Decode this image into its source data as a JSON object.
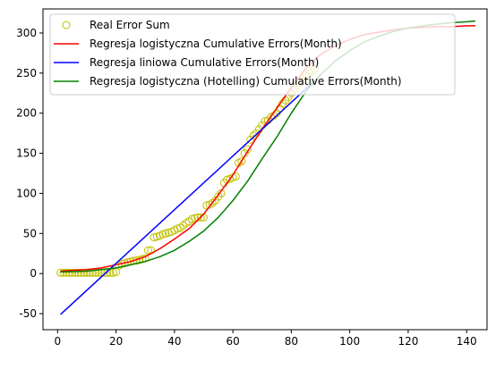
{
  "chart_data": {
    "type": "line",
    "xlim": [
      -5,
      147
    ],
    "ylim": [
      -70,
      330
    ],
    "x_ticks": [
      0,
      20,
      40,
      60,
      80,
      100,
      120,
      140
    ],
    "y_ticks": [
      -50,
      0,
      50,
      100,
      150,
      200,
      250,
      300
    ],
    "grid": false,
    "legend_position": "top-left",
    "legend": [
      "Real Error Sum",
      "Regresja logistyczna Cumulative Errors(Month)",
      "Regresja liniowa Cumulative Errors(Month)",
      "Regresja logistyczna (Hotelling) Cumulative Errors(Month)"
    ],
    "colors": {
      "scatter": "#bfbf00",
      "logistic": "#ff0000",
      "linear": "#0000ff",
      "hotelling": "#008000"
    },
    "scatter_series": {
      "name": "Real Error Sum",
      "x": [
        1,
        2,
        3,
        4,
        5,
        6,
        7,
        8,
        9,
        10,
        11,
        12,
        13,
        14,
        15,
        16,
        17,
        18,
        19,
        20,
        21,
        22,
        23,
        24,
        25,
        26,
        27,
        28,
        29,
        30,
        31,
        32,
        33,
        34,
        35,
        36,
        37,
        38,
        39,
        40,
        41,
        42,
        43,
        44,
        45,
        46,
        47,
        48,
        49,
        50,
        51,
        52,
        53,
        54,
        55,
        56,
        57,
        58,
        59,
        60,
        61,
        62,
        63,
        64,
        65,
        66,
        67,
        68,
        69,
        70,
        71,
        72,
        73,
        74,
        75,
        76,
        77,
        78,
        79,
        80,
        81,
        82,
        83,
        84,
        85,
        86,
        87,
        88
      ],
      "y": [
        1,
        1,
        1,
        1,
        1,
        1,
        1,
        1,
        1,
        1,
        1,
        1,
        1,
        1,
        1,
        1,
        1,
        1,
        1,
        2,
        10,
        12,
        13,
        14,
        15,
        16,
        16,
        17,
        18,
        19,
        29,
        29,
        45,
        46,
        47,
        49,
        50,
        51,
        52,
        54,
        56,
        57,
        60,
        63,
        65,
        68,
        69,
        70,
        70,
        70,
        85,
        86,
        88,
        91,
        96,
        100,
        113,
        117,
        118,
        120,
        121,
        138,
        140,
        150,
        155,
        167,
        172,
        175,
        180,
        185,
        190,
        191,
        195,
        197,
        200,
        206,
        212,
        216,
        220,
        225,
        230,
        235,
        239,
        242,
        246,
        250,
        252,
        255
      ]
    },
    "line_series": [
      {
        "name": "Regresja logistyczna Cumulative Errors(Month)",
        "color": "#ff0000",
        "x": [
          1,
          5,
          10,
          15,
          20,
          25,
          30,
          35,
          40,
          45,
          50,
          55,
          60,
          65,
          70,
          75,
          80,
          85,
          90,
          95,
          100,
          105,
          110,
          115,
          120,
          125,
          130,
          135,
          140,
          143
        ],
        "y": [
          3,
          4,
          5,
          7,
          11,
          15,
          21,
          31,
          43,
          56,
          74,
          98,
          123,
          152,
          180,
          206,
          232,
          256,
          273,
          284,
          292,
          298,
          301,
          304,
          306,
          307,
          308,
          308,
          309,
          309
        ]
      },
      {
        "name": "Regresja liniowa Cumulative Errors(Month)",
        "color": "#0000ff",
        "x": [
          1,
          90
        ],
        "y": [
          -51,
          247
        ]
      },
      {
        "name": "Regresja logistyczna (Hotelling) Cumulative Errors(Month)",
        "color": "#008000",
        "x": [
          1,
          10,
          20,
          25,
          30,
          35,
          40,
          45,
          50,
          55,
          60,
          65,
          70,
          75,
          80,
          85,
          90,
          95,
          100,
          105,
          110,
          115,
          120,
          125,
          130,
          135,
          140,
          143
        ],
        "y": [
          2,
          3,
          7,
          11,
          15,
          21,
          29,
          40,
          53,
          70,
          91,
          115,
          143,
          170,
          200,
          227,
          248,
          265,
          278,
          289,
          296,
          302,
          306,
          309,
          311,
          313,
          314,
          315
        ]
      }
    ]
  }
}
